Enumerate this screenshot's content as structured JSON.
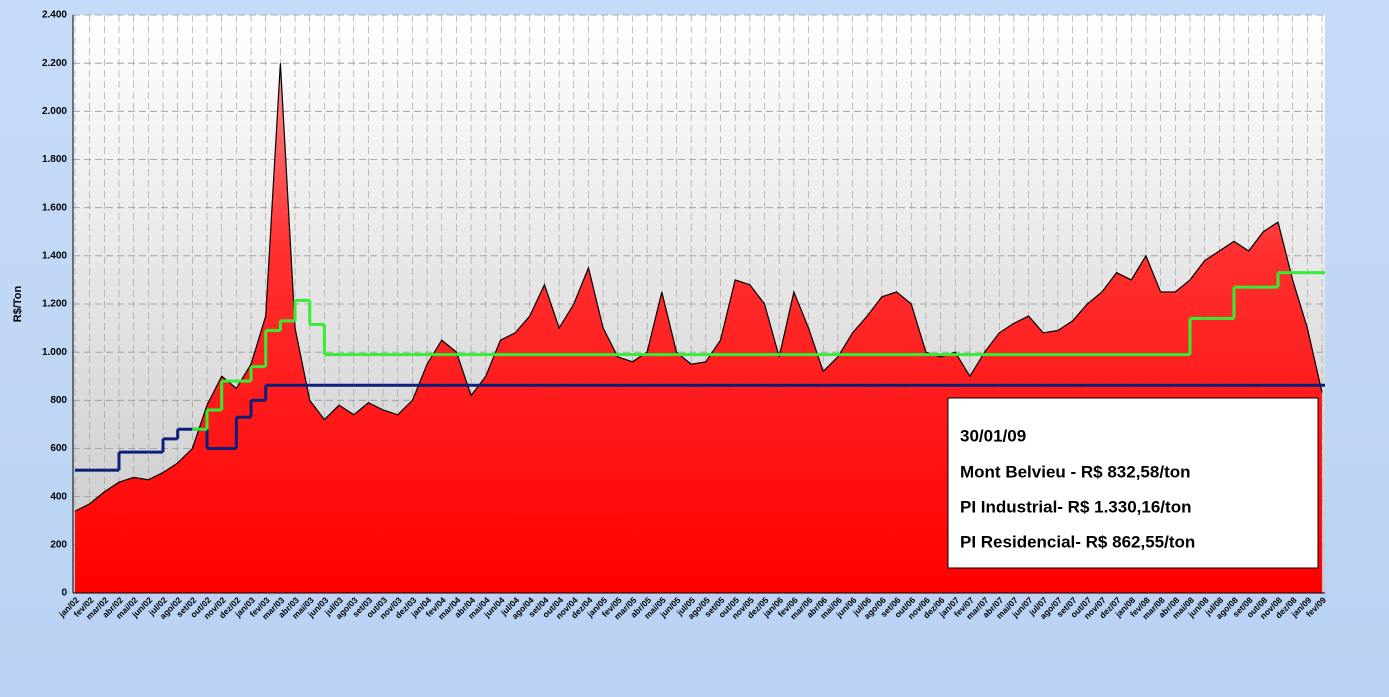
{
  "chart_data": {
    "type": "area-steps",
    "y_label": "R$/Ton",
    "categories": [
      "jan/02",
      "fev/02",
      "mar/02",
      "abr/02",
      "mai/02",
      "jun/02",
      "jul/02",
      "ago/02",
      "set/02",
      "out/02",
      "nov/02",
      "dez/02",
      "jan/03",
      "fev/03",
      "mar/03",
      "abr/03",
      "mai/03",
      "jun/03",
      "jul/03",
      "ago/03",
      "set/03",
      "out/03",
      "nov/03",
      "dez/03",
      "jan/04",
      "fev/04",
      "mar/04",
      "abr/04",
      "mai/04",
      "jun/04",
      "jul/04",
      "ago/04",
      "set/04",
      "out/04",
      "nov/04",
      "dez/04",
      "jan/05",
      "fev/05",
      "mar/05",
      "abr/05",
      "mai/05",
      "jun/05",
      "jul/05",
      "ago/05",
      "set/05",
      "out/05",
      "nov/05",
      "dez/05",
      "jan/06",
      "fev/06",
      "mar/06",
      "abr/06",
      "mai/06",
      "jun/06",
      "jul/06",
      "ago/06",
      "set/06",
      "out/06",
      "nov/06",
      "dez/06",
      "jan/07",
      "fev/07",
      "mar/07",
      "abr/07",
      "mai/07",
      "jun/07",
      "jul/07",
      "ago/07",
      "set/07",
      "out/07",
      "nov/07",
      "dez/07",
      "jan/08",
      "fev/08",
      "mar/08",
      "abr/08",
      "mai/08",
      "jun/08",
      "jul/08",
      "ago/08",
      "set/08",
      "out/08",
      "nov/08",
      "dez/08",
      "jan/09",
      "fev/09"
    ],
    "series": [
      {
        "color": "#ff0000",
        "values": [
          340,
          370,
          420,
          460,
          480,
          470,
          500,
          540,
          600,
          780,
          900,
          850,
          950,
          1150,
          2200,
          1100,
          800,
          720,
          780,
          740,
          790,
          760,
          740,
          800,
          950,
          1050,
          1000,
          820,
          900,
          1050,
          1080,
          1150,
          1280,
          1100,
          1200,
          1350,
          1100,
          980,
          960,
          1000,
          1250,
          1000,
          950,
          960,
          1050,
          1300,
          1280,
          1200,
          980,
          1250,
          1100,
          920,
          980,
          1080,
          1150,
          1230,
          1250,
          1200,
          1000,
          980,
          1000,
          900,
          1000,
          1080,
          1120,
          1150,
          1080,
          1090,
          1130,
          1200,
          1250,
          1330,
          1300,
          1400,
          1250,
          1250,
          1300,
          1380,
          1420,
          1460,
          1420,
          1500,
          1540,
          1300,
          1100,
          832.58
        ]
      },
      {
        "color": "#33ee33",
        "values": [
          null,
          null,
          null,
          null,
          null,
          null,
          null,
          null,
          680,
          760,
          880,
          880,
          940,
          1090,
          1130,
          1215,
          1115,
          990,
          990,
          990,
          990,
          990,
          990,
          990,
          990,
          990,
          990,
          990,
          990,
          990,
          990,
          990,
          990,
          990,
          990,
          990,
          990,
          990,
          990,
          990,
          990,
          990,
          990,
          990,
          990,
          990,
          990,
          990,
          990,
          990,
          990,
          990,
          990,
          990,
          990,
          990,
          990,
          990,
          990,
          990,
          990,
          990,
          990,
          990,
          990,
          990,
          990,
          990,
          990,
          990,
          990,
          990,
          990,
          990,
          990,
          990,
          1140,
          1140,
          1140,
          1270,
          1270,
          1270,
          1330.16,
          1330.16,
          1330.16,
          1330.16
        ]
      },
      {
        "color": "#0a1f7a",
        "values": [
          510,
          510,
          510,
          585,
          585,
          585,
          640,
          680,
          680,
          600,
          600,
          730,
          800,
          862.55,
          862.55,
          862.55,
          862.55,
          862.55,
          862.55,
          862.55,
          862.55,
          862.55,
          862.55,
          862.55,
          862.55,
          862.55,
          862.55,
          862.55,
          862.55,
          862.55,
          862.55,
          862.55,
          862.55,
          862.55,
          862.55,
          862.55,
          862.55,
          862.55,
          862.55,
          862.55,
          862.55,
          862.55,
          862.55,
          862.55,
          862.55,
          862.55,
          862.55,
          862.55,
          862.55,
          862.55,
          862.55,
          862.55,
          862.55,
          862.55,
          862.55,
          862.55,
          862.55,
          862.55,
          862.55,
          862.55,
          862.55,
          862.55,
          862.55,
          862.55,
          862.55,
          862.55,
          862.55,
          862.55,
          862.55,
          862.55,
          862.55,
          862.55,
          862.55,
          862.55,
          862.55,
          862.55,
          862.55,
          862.55,
          862.55,
          862.55,
          862.55,
          862.55,
          862.55,
          862.55,
          862.55,
          862.55
        ]
      }
    ],
    "ylim": [
      0,
      2400
    ],
    "yticks": [
      0,
      200,
      400,
      600,
      800,
      {
        "value": 1000,
        "label": "1.000"
      },
      {
        "value": 1200,
        "label": "1.200"
      },
      {
        "value": 1400,
        "label": "1.400"
      },
      {
        "value": 1600,
        "label": "1.600"
      },
      {
        "value": 1800,
        "label": "1.800"
      },
      {
        "value": 2000,
        "label": "2.000"
      },
      {
        "value": 2200,
        "label": "2.200"
      },
      {
        "value": 2400,
        "label": "2.400"
      }
    ],
    "grid": true,
    "annotations": [
      "30/01/09",
      "Mont Belvieu - R$ 832,58/ton",
      "PI Industrial- R$ 1.330,16/ton",
      "PI Residencial- R$ 862,55/ton"
    ]
  }
}
